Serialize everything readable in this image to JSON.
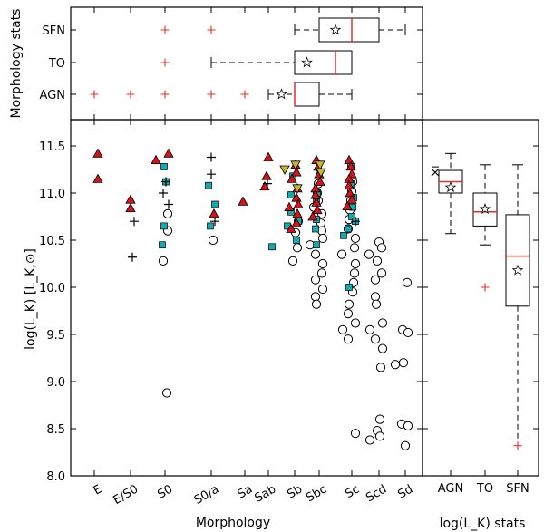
{
  "chart_data": [
    {
      "type": "scatter",
      "xlabel": "Morphology",
      "ylabel": "log(L_K) [L_K,⊙]",
      "ylim": [
        8.0,
        11.75
      ],
      "yticks": [
        8.0,
        8.5,
        9.0,
        9.5,
        10.0,
        10.5,
        11.0,
        11.5
      ],
      "categories": [
        "E",
        "E/S0",
        "S0",
        "S0/a",
        "Sa",
        "Sab",
        "Sb",
        "Sbc",
        "Sc",
        "Scd",
        "Sd"
      ],
      "colors": {
        "agn": "#d4141a",
        "to": "#18a8b0",
        "yellow": "#c9b82c",
        "sfn": "#ffffff",
        "cross": "#000000"
      },
      "series": [
        {
          "marker": "triangle-red",
          "points": [
            {
              "m": "E",
              "y": 11.42
            },
            {
              "m": "E",
              "y": 11.15
            },
            {
              "m": "E/S0",
              "y": 10.93
            },
            {
              "m": "E/S0",
              "y": 10.84
            },
            {
              "m": "S0",
              "y": 11.42
            },
            {
              "m": "S0",
              "y": 11.35
            },
            {
              "m": "S0/a",
              "y": 10.78
            },
            {
              "m": "Sa",
              "y": 10.91
            },
            {
              "m": "Sab",
              "y": 11.38
            },
            {
              "m": "Sab",
              "y": 11.18
            },
            {
              "m": "Sab",
              "y": 11.07
            },
            {
              "m": "Sb",
              "y": 11.3
            },
            {
              "m": "Sb",
              "y": 11.22
            },
            {
              "m": "Sb",
              "y": 11.15
            },
            {
              "m": "Sb",
              "y": 11.05
            },
            {
              "m": "Sb",
              "y": 10.95
            },
            {
              "m": "Sb",
              "y": 10.88
            },
            {
              "m": "Sb",
              "y": 10.85
            },
            {
              "m": "Sb",
              "y": 10.78
            },
            {
              "m": "Sb",
              "y": 10.68
            },
            {
              "m": "Sb",
              "y": 10.62
            },
            {
              "m": "Sbc",
              "y": 11.35
            },
            {
              "m": "Sbc",
              "y": 11.28
            },
            {
              "m": "Sbc",
              "y": 11.2
            },
            {
              "m": "Sbc",
              "y": 11.12
            },
            {
              "m": "Sbc",
              "y": 11.05
            },
            {
              "m": "Sbc",
              "y": 10.98
            },
            {
              "m": "Sbc",
              "y": 10.9
            },
            {
              "m": "Sbc",
              "y": 10.82
            },
            {
              "m": "Sbc",
              "y": 10.75
            },
            {
              "m": "Sc",
              "y": 11.35
            },
            {
              "m": "Sc",
              "y": 11.28
            },
            {
              "m": "Sc",
              "y": 11.2
            },
            {
              "m": "Sc",
              "y": 11.15
            },
            {
              "m": "Sc",
              "y": 11.08
            },
            {
              "m": "Sc",
              "y": 11.0
            },
            {
              "m": "Sc",
              "y": 10.93
            },
            {
              "m": "Sc",
              "y": 10.86
            }
          ]
        },
        {
          "marker": "square-teal",
          "points": [
            {
              "m": "S0",
              "y": 11.28
            },
            {
              "m": "S0",
              "y": 11.12
            },
            {
              "m": "S0",
              "y": 10.65
            },
            {
              "m": "S0",
              "y": 10.45
            },
            {
              "m": "S0/a",
              "y": 11.08
            },
            {
              "m": "S0/a",
              "y": 10.88
            },
            {
              "m": "S0/a",
              "y": 10.65
            },
            {
              "m": "Sab",
              "y": 10.43
            },
            {
              "m": "Sb",
              "y": 11.18
            },
            {
              "m": "Sb",
              "y": 10.98
            },
            {
              "m": "Sb",
              "y": 10.8
            },
            {
              "m": "Sb",
              "y": 10.7
            },
            {
              "m": "Sb",
              "y": 10.65
            },
            {
              "m": "Sb",
              "y": 10.5
            },
            {
              "m": "Sbc",
              "y": 11.2
            },
            {
              "m": "Sbc",
              "y": 11.0
            },
            {
              "m": "Sbc",
              "y": 10.9
            },
            {
              "m": "Sbc",
              "y": 10.72
            },
            {
              "m": "Sbc",
              "y": 10.62
            },
            {
              "m": "Sbc",
              "y": 10.45
            },
            {
              "m": "Sc",
              "y": 11.28
            },
            {
              "m": "Sc",
              "y": 11.1
            },
            {
              "m": "Sc",
              "y": 10.95
            },
            {
              "m": "Sc",
              "y": 10.85
            },
            {
              "m": "Sc",
              "y": 10.75
            },
            {
              "m": "Sc",
              "y": 10.7
            },
            {
              "m": "Sc",
              "y": 10.62
            },
            {
              "m": "Sc",
              "y": 10.55
            },
            {
              "m": "Sc",
              "y": 10.0
            }
          ]
        },
        {
          "marker": "triangle-down-yellow",
          "points": [
            {
              "m": "Sb",
              "y": 11.3
            },
            {
              "m": "Sb",
              "y": 11.25
            },
            {
              "m": "Sb",
              "y": 11.05
            },
            {
              "m": "Sbc",
              "y": 11.3
            },
            {
              "m": "Sbc",
              "y": 11.22
            }
          ]
        },
        {
          "marker": "circle-white",
          "points": [
            {
              "m": "S0",
              "y": 10.78
            },
            {
              "m": "S0",
              "y": 10.6
            },
            {
              "m": "S0",
              "y": 10.28
            },
            {
              "m": "S0",
              "y": 8.88
            },
            {
              "m": "S0/a",
              "y": 10.5
            },
            {
              "m": "Sb",
              "y": 10.7
            },
            {
              "m": "Sb",
              "y": 10.58
            },
            {
              "m": "Sb",
              "y": 10.42
            },
            {
              "m": "Sb",
              "y": 10.28
            },
            {
              "m": "Sbc",
              "y": 11.1
            },
            {
              "m": "Sbc",
              "y": 11.0
            },
            {
              "m": "Sbc",
              "y": 10.92
            },
            {
              "m": "Sbc",
              "y": 10.85
            },
            {
              "m": "Sbc",
              "y": 10.78
            },
            {
              "m": "Sbc",
              "y": 10.68
            },
            {
              "m": "Sbc",
              "y": 10.6
            },
            {
              "m": "Sbc",
              "y": 10.52
            },
            {
              "m": "Sbc",
              "y": 10.45
            },
            {
              "m": "Sbc",
              "y": 10.35
            },
            {
              "m": "Sbc",
              "y": 10.25
            },
            {
              "m": "Sbc",
              "y": 10.15
            },
            {
              "m": "Sbc",
              "y": 10.08
            },
            {
              "m": "Sbc",
              "y": 9.98
            },
            {
              "m": "Sbc",
              "y": 9.9
            },
            {
              "m": "Sbc",
              "y": 9.82
            },
            {
              "m": "Sc",
              "y": 11.12
            },
            {
              "m": "Sc",
              "y": 11.02
            },
            {
              "m": "Sc",
              "y": 10.92
            },
            {
              "m": "Sc",
              "y": 10.82
            },
            {
              "m": "Sc",
              "y": 10.72
            },
            {
              "m": "Sc",
              "y": 10.62
            },
            {
              "m": "Sc",
              "y": 10.52
            },
            {
              "m": "Sc",
              "y": 10.42
            },
            {
              "m": "Sc",
              "y": 10.35
            },
            {
              "m": "Sc",
              "y": 10.25
            },
            {
              "m": "Sc",
              "y": 10.15
            },
            {
              "m": "Sc",
              "y": 10.05
            },
            {
              "m": "Sc",
              "y": 9.95
            },
            {
              "m": "Sc",
              "y": 9.82
            },
            {
              "m": "Sc",
              "y": 9.72
            },
            {
              "m": "Sc",
              "y": 9.62
            },
            {
              "m": "Sc",
              "y": 9.55
            },
            {
              "m": "Sc",
              "y": 9.45
            },
            {
              "m": "Sc",
              "y": 8.45
            },
            {
              "m": "Scd",
              "y": 10.48
            },
            {
              "m": "Scd",
              "y": 10.42
            },
            {
              "m": "Scd",
              "y": 10.35
            },
            {
              "m": "Scd",
              "y": 10.28
            },
            {
              "m": "Scd",
              "y": 10.15
            },
            {
              "m": "Scd",
              "y": 10.08
            },
            {
              "m": "Scd",
              "y": 9.9
            },
            {
              "m": "Scd",
              "y": 9.82
            },
            {
              "m": "Scd",
              "y": 9.62
            },
            {
              "m": "Scd",
              "y": 9.55
            },
            {
              "m": "Scd",
              "y": 9.45
            },
            {
              "m": "Scd",
              "y": 9.35
            },
            {
              "m": "Scd",
              "y": 9.15
            },
            {
              "m": "Scd",
              "y": 8.6
            },
            {
              "m": "Scd",
              "y": 8.48
            },
            {
              "m": "Scd",
              "y": 8.42
            },
            {
              "m": "Scd",
              "y": 8.38
            },
            {
              "m": "Sd",
              "y": 10.05
            },
            {
              "m": "Sd",
              "y": 9.55
            },
            {
              "m": "Sd",
              "y": 9.52
            },
            {
              "m": "Sd",
              "y": 9.2
            },
            {
              "m": "Sd",
              "y": 9.18
            },
            {
              "m": "Sd",
              "y": 8.55
            },
            {
              "m": "Sd",
              "y": 8.53
            },
            {
              "m": "Sd",
              "y": 8.32
            }
          ]
        },
        {
          "marker": "plus-black",
          "points": [
            {
              "m": "E/S0",
              "y": 10.7
            },
            {
              "m": "E/S0",
              "y": 10.32
            },
            {
              "m": "S0",
              "y": 11.12
            },
            {
              "m": "S0",
              "y": 11.0
            },
            {
              "m": "S0",
              "y": 10.88
            },
            {
              "m": "S0/a",
              "y": 11.38
            },
            {
              "m": "S0/a",
              "y": 11.2
            },
            {
              "m": "S0/a",
              "y": 10.7
            },
            {
              "m": "Sab",
              "y": 11.1
            },
            {
              "m": "Sc",
              "y": 10.7
            }
          ]
        }
      ]
    },
    {
      "type": "box",
      "ylabel": "Morphology stats",
      "categories": [
        "SFN",
        "TO",
        "AGN"
      ],
      "boxes": [
        {
          "name": "SFN",
          "whislo": "Sb",
          "q1": "Sbc",
          "med": "Sc",
          "q3": "Scd",
          "whishi": "Sd",
          "mean": "Sbc/Sc",
          "fliers": [
            "S0",
            "S0/a"
          ]
        },
        {
          "name": "TO",
          "whislo": "S0/a",
          "q1": "Sb",
          "med": "Sbc/Sc",
          "q3": "Sc",
          "whishi": "Sc",
          "mean": "Sb/Sbc",
          "fliers": [
            "S0"
          ]
        },
        {
          "name": "AGN",
          "whislo": "Sab",
          "q1": "Sb",
          "med": "Sb",
          "q3": "Sbc",
          "whishi": "Sc",
          "mean": "Sab/Sb",
          "fliers": [
            "E",
            "E/S0",
            "S0",
            "S0/a",
            "Sa"
          ]
        }
      ]
    },
    {
      "type": "box",
      "xlabel": "log(L_K) stats",
      "categories": [
        "AGN",
        "TO",
        "SFN"
      ],
      "boxes": [
        {
          "name": "AGN",
          "whislo": 10.57,
          "q1": 11.0,
          "med": 11.12,
          "q3": 11.24,
          "whishi": 11.42,
          "mean": 11.06,
          "fliers": []
        },
        {
          "name": "TO",
          "whislo": 10.45,
          "q1": 10.65,
          "med": 10.8,
          "q3": 11.0,
          "whishi": 11.3,
          "mean": 10.83,
          "fliers": [
            10.0
          ]
        },
        {
          "name": "SFN",
          "whislo": 8.38,
          "q1": 9.8,
          "med": 10.33,
          "q3": 10.77,
          "whishi": 11.3,
          "mean": 10.18,
          "fliers": [
            8.32
          ]
        }
      ],
      "extra_markers": [
        {
          "symbol": "x",
          "y": 11.22
        }
      ]
    }
  ]
}
